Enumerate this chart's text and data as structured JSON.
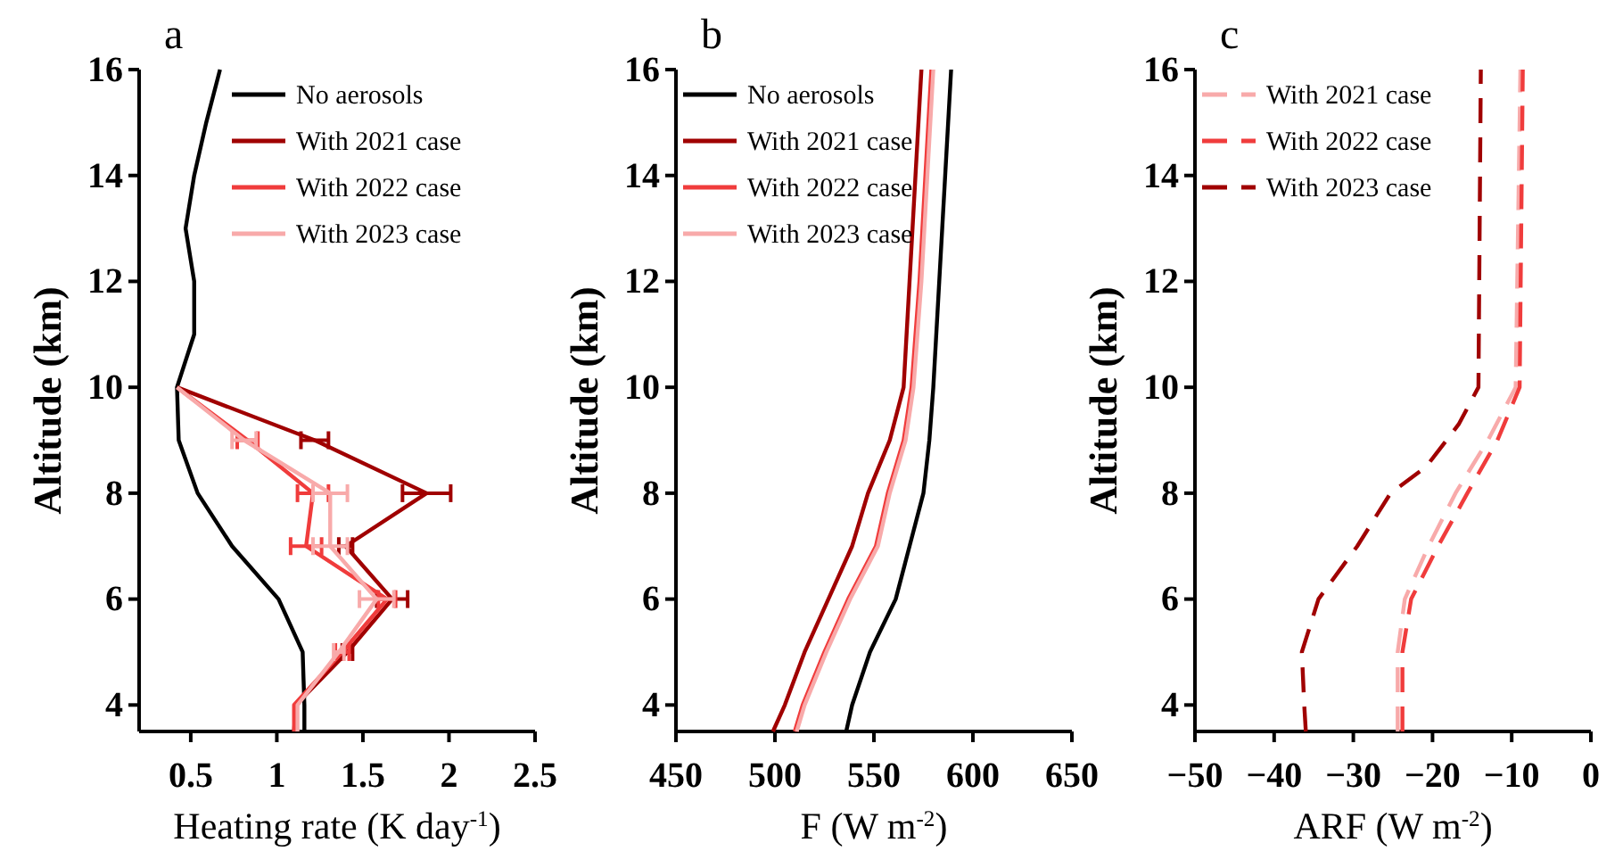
{
  "chart_data": [
    {
      "type": "line",
      "title": "a",
      "xlabel": "Heating rate (K day$^{-1}$)",
      "ylabel": "Altitude (km)",
      "xlim": [
        0.2,
        2.5
      ],
      "xticks": [
        0.5,
        1.0,
        1.5,
        2.0,
        2.5
      ],
      "ylim": [
        3.5,
        16
      ],
      "yticks": [
        4,
        6,
        8,
        10,
        12,
        14,
        16
      ],
      "legend": "top right",
      "line_style": "solid",
      "marker": "none",
      "grid": false,
      "series": [
        {
          "name": "No aerosols",
          "color": "#000000",
          "x": [
            1.16,
            1.16,
            1.15,
            1.01,
            0.74,
            0.54,
            0.43,
            0.42,
            0.52,
            0.52,
            0.47,
            0.52,
            0.59,
            0.67
          ],
          "values": [
            3.5,
            4,
            5,
            6,
            7,
            8,
            9,
            10,
            11,
            12,
            13,
            14,
            15,
            16
          ]
        },
        {
          "name": "With 2021 case",
          "color": "#a00000",
          "x": [
            1.1,
            1.11,
            1.41,
            1.67,
            1.4,
            1.87,
            1.22,
            0.42
          ],
          "values": [
            3.5,
            4,
            5,
            6,
            7,
            8,
            9,
            10
          ],
          "xerrors": [
            null,
            null,
            0.03,
            0.09,
            0.04,
            0.14,
            0.08,
            null
          ]
        },
        {
          "name": "With 2022 case",
          "color": "#f03c3c",
          "x": [
            1.1,
            1.1,
            1.38,
            1.64,
            1.17,
            1.21,
            0.83,
            0.42
          ],
          "values": [
            3.5,
            4,
            5,
            6,
            7,
            8,
            9,
            10
          ],
          "xerrors": [
            null,
            null,
            0.04,
            0.05,
            0.09,
            0.09,
            0.06,
            null
          ]
        },
        {
          "name": "With 2023 case",
          "color": "#f8aaaa",
          "x": [
            1.12,
            1.12,
            1.36,
            1.58,
            1.31,
            1.31,
            0.81,
            0.42
          ],
          "values": [
            3.5,
            4,
            5,
            6,
            7,
            8,
            9,
            10
          ],
          "xerrors": [
            null,
            null,
            0.03,
            0.1,
            0.1,
            0.1,
            0.07,
            null
          ]
        }
      ]
    },
    {
      "type": "line",
      "title": "b",
      "xlabel": "F  (W m$^{-2}$)",
      "ylabel": "Altitude (km)",
      "xlim": [
        450,
        650
      ],
      "xticks": [
        450,
        500,
        550,
        600,
        650
      ],
      "ylim": [
        3.5,
        16
      ],
      "yticks": [
        4,
        6,
        8,
        10,
        12,
        14,
        16
      ],
      "legend": "top left",
      "line_style": "solid",
      "marker": "none",
      "grid": false,
      "series": [
        {
          "name": "No aerosols",
          "color": "#000000",
          "x": [
            536,
            539,
            548,
            561,
            568,
            575,
            578,
            580,
            583,
            586,
            589
          ],
          "values": [
            3.5,
            4,
            5,
            6,
            7,
            8,
            9,
            10,
            12,
            14,
            16
          ]
        },
        {
          "name": "With 2021 case",
          "color": "#a00000",
          "x": [
            499,
            505,
            515,
            527,
            539,
            547,
            558,
            565,
            568,
            571,
            574
          ],
          "values": [
            3.5,
            4,
            5,
            6,
            7,
            8,
            9,
            10,
            12,
            14,
            16
          ]
        },
        {
          "name": "With 2022 case",
          "color": "#f03c3c",
          "x": [
            510,
            514,
            525,
            537,
            551,
            557,
            565,
            569,
            573,
            576,
            579
          ],
          "values": [
            3.5,
            4,
            5,
            6,
            7,
            8,
            9,
            10,
            12,
            14,
            16
          ]
        },
        {
          "name": "With 2023 case",
          "color": "#f8aaaa",
          "x": [
            511,
            515,
            526,
            538,
            552,
            558,
            566,
            570,
            574,
            577,
            580
          ],
          "values": [
            3.5,
            4,
            5,
            6,
            7,
            8,
            9,
            10,
            12,
            14,
            16
          ]
        }
      ]
    },
    {
      "type": "line",
      "title": "c",
      "xlabel": "ARF  (W m$^{-2}$)",
      "ylabel": "Altitude (km)",
      "xlim": [
        -50,
        0
      ],
      "xticks": [
        -50,
        -40,
        -30,
        -20,
        -10,
        0
      ],
      "ylim": [
        3.5,
        16
      ],
      "yticks": [
        4,
        6,
        8,
        10,
        12,
        14,
        16
      ],
      "legend": "top left",
      "line_style": "dashed",
      "marker": "none",
      "grid": false,
      "series": [
        {
          "name": "With 2021 case",
          "color": "#f8aaaa",
          "x": [
            -24.4,
            -24.4,
            -24.4,
            -23.5,
            -20.5,
            -17.1,
            -13,
            -9.5,
            -8.9
          ],
          "values": [
            3.5,
            4,
            5,
            6,
            7,
            8,
            9,
            10,
            16
          ]
        },
        {
          "name": "With 2022 case",
          "color": "#f03c3c",
          "x": [
            -23.8,
            -23.8,
            -23.8,
            -22.7,
            -19.3,
            -15.6,
            -11.8,
            -9,
            -8.6
          ],
          "values": [
            3.5,
            4,
            5,
            6,
            7,
            8,
            9,
            10,
            16
          ]
        },
        {
          "name": "With 2023 case",
          "color": "#a00000",
          "x": [
            -36,
            -36.2,
            -36.5,
            -34.4,
            -29.5,
            -25.3,
            -20.8,
            -16.7,
            -14.2,
            -13.9
          ],
          "values": [
            3.5,
            4,
            5,
            6,
            7,
            8,
            8.5,
            9.3,
            10,
            16
          ]
        }
      ]
    }
  ]
}
